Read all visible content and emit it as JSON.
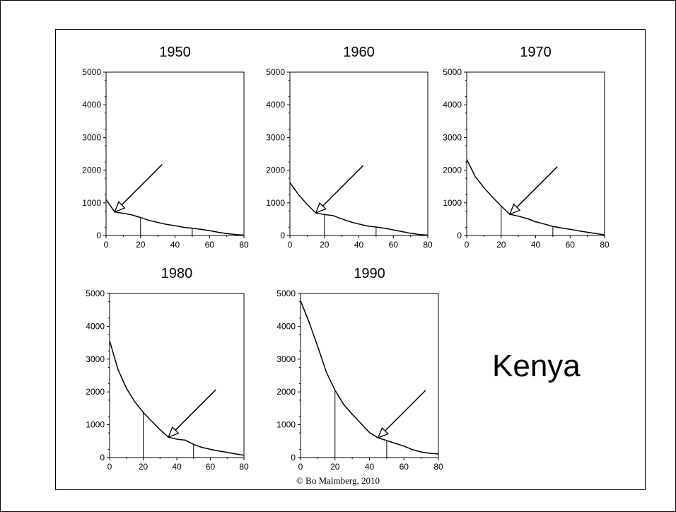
{
  "country_label": "Kenya",
  "credit": "© Bo Malmberg, 2010",
  "chart_data": [
    {
      "type": "line",
      "title": "1950",
      "xlim": [
        0,
        80
      ],
      "ylim": [
        0,
        5000
      ],
      "xticks": [
        0,
        20,
        40,
        60,
        80
      ],
      "yticks": [
        0,
        1000,
        2000,
        3000,
        4000,
        5000
      ],
      "x": [
        0,
        5,
        10,
        15,
        20,
        25,
        30,
        35,
        40,
        45,
        50,
        55,
        60,
        65,
        70,
        75,
        80
      ],
      "values": [
        1100,
        720,
        680,
        630,
        550,
        460,
        400,
        340,
        300,
        250,
        220,
        190,
        150,
        100,
        60,
        30,
        10
      ],
      "vertical_markers": [
        20,
        50
      ],
      "arrow_to": [
        5,
        720
      ]
    },
    {
      "type": "line",
      "title": "1960",
      "xlim": [
        0,
        80
      ],
      "ylim": [
        0,
        5000
      ],
      "xticks": [
        0,
        20,
        40,
        60,
        80
      ],
      "yticks": [
        0,
        1000,
        2000,
        3000,
        4000,
        5000
      ],
      "x": [
        0,
        5,
        10,
        15,
        20,
        25,
        30,
        35,
        40,
        45,
        50,
        55,
        60,
        65,
        70,
        75,
        80
      ],
      "values": [
        1620,
        1250,
        950,
        690,
        640,
        610,
        510,
        420,
        350,
        290,
        260,
        220,
        170,
        120,
        70,
        30,
        10
      ],
      "vertical_markers": [
        20,
        50
      ],
      "arrow_to": [
        15,
        690
      ]
    },
    {
      "type": "line",
      "title": "1970",
      "xlim": [
        0,
        80
      ],
      "ylim": [
        0,
        5000
      ],
      "xticks": [
        0,
        20,
        40,
        60,
        80
      ],
      "yticks": [
        0,
        1000,
        2000,
        3000,
        4000,
        5000
      ],
      "x": [
        0,
        5,
        10,
        15,
        20,
        25,
        30,
        35,
        40,
        45,
        50,
        55,
        60,
        65,
        70,
        75,
        80
      ],
      "values": [
        2330,
        1800,
        1460,
        1170,
        900,
        650,
        590,
        520,
        420,
        350,
        280,
        230,
        190,
        140,
        100,
        60,
        20
      ],
      "vertical_markers": [
        20,
        50
      ],
      "arrow_to": [
        25,
        650
      ]
    },
    {
      "type": "line",
      "title": "1980",
      "xlim": [
        0,
        80
      ],
      "ylim": [
        0,
        5000
      ],
      "xticks": [
        0,
        20,
        40,
        60,
        80
      ],
      "yticks": [
        0,
        1000,
        2000,
        3000,
        4000,
        5000
      ],
      "x": [
        0,
        5,
        10,
        15,
        20,
        25,
        30,
        35,
        40,
        45,
        50,
        55,
        60,
        65,
        70,
        75,
        80
      ],
      "values": [
        3560,
        2680,
        2110,
        1700,
        1380,
        1110,
        850,
        620,
        560,
        530,
        400,
        310,
        250,
        200,
        160,
        110,
        70
      ],
      "vertical_markers": [
        20,
        50
      ],
      "arrow_to": [
        35,
        620
      ]
    },
    {
      "type": "line",
      "title": "1990",
      "xlim": [
        0,
        80
      ],
      "ylim": [
        0,
        5000
      ],
      "xticks": [
        0,
        20,
        40,
        60,
        80
      ],
      "yticks": [
        0,
        1000,
        2000,
        3000,
        4000,
        5000
      ],
      "x": [
        0,
        5,
        10,
        15,
        20,
        25,
        30,
        35,
        40,
        45,
        50,
        55,
        60,
        65,
        70,
        75,
        80
      ],
      "values": [
        4780,
        4120,
        3380,
        2600,
        2050,
        1620,
        1320,
        1040,
        760,
        600,
        520,
        430,
        350,
        240,
        170,
        130,
        110
      ],
      "vertical_markers": [
        20,
        50
      ],
      "arrow_to": [
        45,
        600
      ]
    }
  ]
}
